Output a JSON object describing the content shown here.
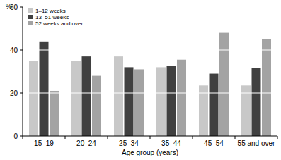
{
  "chart_data": {
    "type": "bar",
    "y_label": "%",
    "x_label": "Age group (years)",
    "categories": [
      "15–19",
      "20–24",
      "25–34",
      "35–44",
      "45–54",
      "55 and over"
    ],
    "series": [
      {
        "name": "1–12 weeks",
        "color": "#c8c8c8",
        "values": [
          35,
          35,
          37,
          32,
          23.5,
          23.5
        ]
      },
      {
        "name": "13–51 weeks",
        "color": "#404040",
        "values": [
          44,
          37,
          32,
          32.5,
          29,
          31.5
        ]
      },
      {
        "name": "52 weeks and over",
        "color": "#a3a3a3",
        "values": [
          21,
          28,
          31,
          35.5,
          48,
          45
        ]
      }
    ],
    "ylim": [
      0,
      60
    ],
    "yticks": [
      0,
      20,
      40,
      60
    ],
    "grid": true,
    "legend": "top-left"
  }
}
